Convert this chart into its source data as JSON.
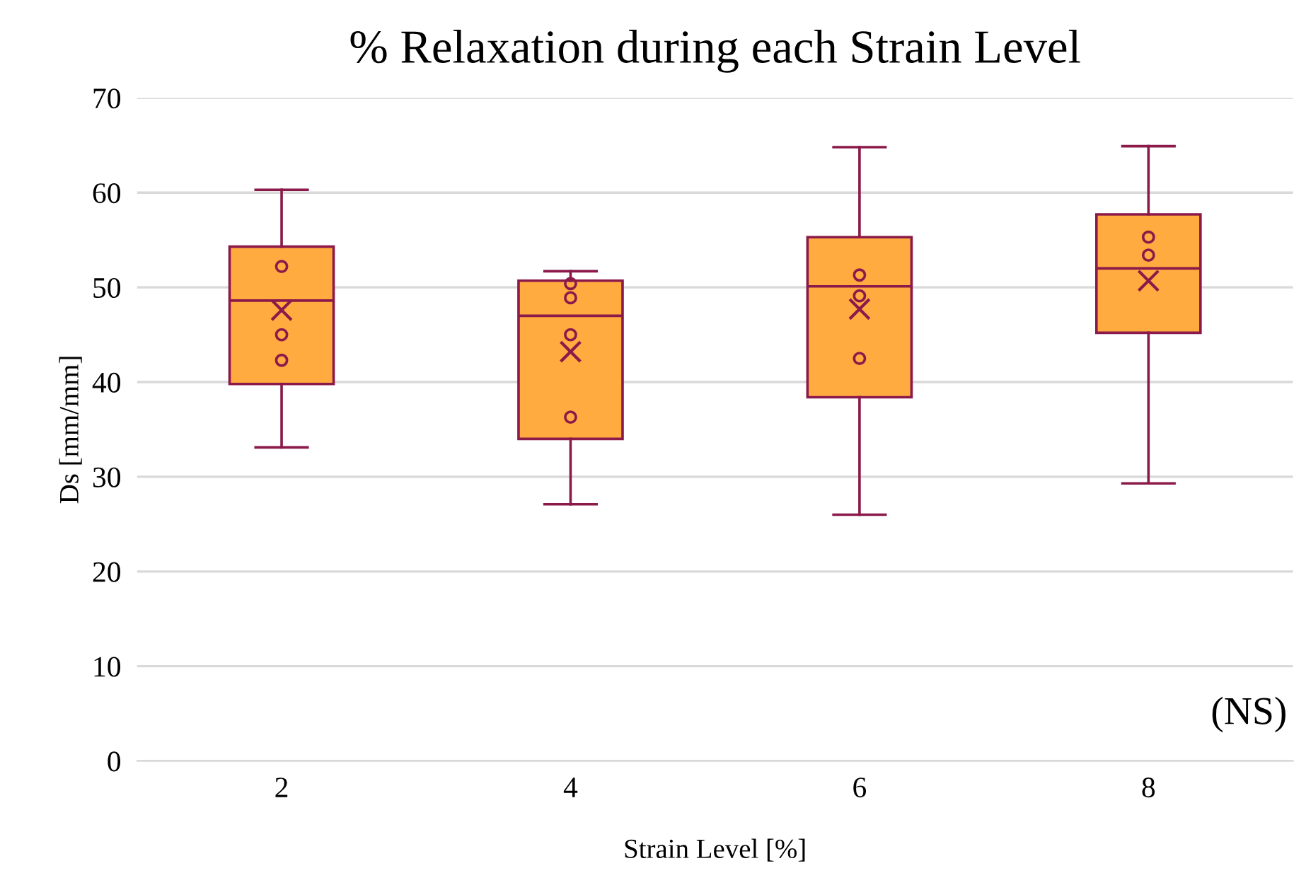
{
  "chart_data": {
    "type": "box",
    "title": "% Relaxation during each Strain Level",
    "xlabel": "Strain Level [%]",
    "ylabel": "Ds [mm/mm]",
    "categories": [
      "2",
      "4",
      "6",
      "8"
    ],
    "ylim": [
      0,
      70
    ],
    "yticks": [
      0,
      10,
      20,
      30,
      40,
      50,
      60,
      70
    ],
    "grid": "y",
    "legend": false,
    "annotations": [
      "(NS)"
    ],
    "series": [
      {
        "color": "#ffab40",
        "boxes": [
          {
            "low": 33.1,
            "q1": 39.8,
            "median": 48.6,
            "q3": 54.3,
            "high": 60.3,
            "mean": 47.6
          },
          {
            "low": 27.1,
            "q1": 34.0,
            "median": 47.0,
            "q3": 50.7,
            "high": 51.7,
            "mean": 43.2
          },
          {
            "low": 26.0,
            "q1": 38.4,
            "median": 50.1,
            "q3": 55.3,
            "high": 64.8,
            "mean": 47.7
          },
          {
            "low": 29.3,
            "q1": 45.2,
            "median": 52.0,
            "q3": 57.7,
            "high": 64.9,
            "mean": 50.7
          }
        ]
      },
      {
        "type": "scatter",
        "color": "#8b1a4a",
        "marker": "circle",
        "x": [
          "2",
          "2",
          "2",
          "4",
          "4",
          "4",
          "4",
          "6",
          "6",
          "6",
          "8",
          "8"
        ],
        "values": [
          52.2,
          45.0,
          42.3,
          50.4,
          48.9,
          45.0,
          36.3,
          51.3,
          49.1,
          42.5,
          55.3,
          53.4
        ]
      }
    ]
  }
}
